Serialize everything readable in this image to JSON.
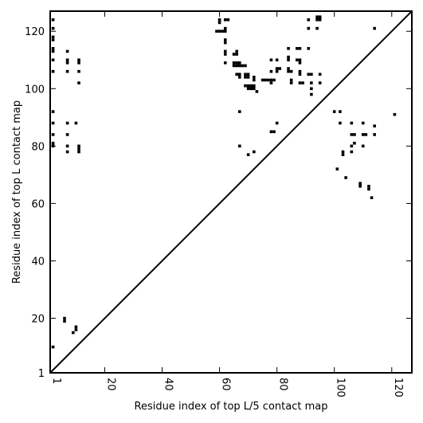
{
  "chart_data": {
    "type": "scatter",
    "xlabel": "Residue index of top L/5 contact map",
    "ylabel": "Residue index of top L contact map",
    "xlim": [
      1,
      127
    ],
    "ylim": [
      1,
      127
    ],
    "x_ticks": [
      1,
      20,
      40,
      60,
      80,
      100,
      120
    ],
    "y_ticks": [
      1,
      20,
      40,
      60,
      80,
      100,
      120
    ],
    "diagonal": true,
    "grid": false,
    "points": [
      [
        2,
        124
      ],
      [
        2,
        121
      ],
      [
        2,
        118
      ],
      [
        2,
        117
      ],
      [
        2,
        114
      ],
      [
        2,
        113
      ],
      [
        2,
        110
      ],
      [
        2,
        106
      ],
      [
        2,
        92
      ],
      [
        2,
        88
      ],
      [
        2,
        84
      ],
      [
        2,
        81
      ],
      [
        2,
        80
      ],
      [
        2,
        10
      ],
      [
        6,
        20
      ],
      [
        6,
        19
      ],
      [
        7,
        113
      ],
      [
        7,
        110
      ],
      [
        7,
        109
      ],
      [
        7,
        106
      ],
      [
        7,
        88
      ],
      [
        7,
        84
      ],
      [
        7,
        80
      ],
      [
        7,
        78
      ],
      [
        9,
        15
      ],
      [
        10,
        17
      ],
      [
        10,
        16
      ],
      [
        10,
        88
      ],
      [
        11,
        110
      ],
      [
        11,
        109
      ],
      [
        11,
        106
      ],
      [
        11,
        102
      ],
      [
        11,
        80
      ],
      [
        11,
        79
      ],
      [
        11,
        78
      ],
      [
        59,
        120
      ],
      [
        60,
        124
      ],
      [
        60,
        123
      ],
      [
        60,
        120
      ],
      [
        61,
        120
      ],
      [
        62,
        124
      ],
      [
        62,
        121
      ],
      [
        62,
        120
      ],
      [
        62,
        117
      ],
      [
        62,
        116
      ],
      [
        62,
        113
      ],
      [
        62,
        112
      ],
      [
        62,
        109
      ],
      [
        63,
        124
      ],
      [
        65,
        112
      ],
      [
        65,
        109
      ],
      [
        65,
        108
      ],
      [
        66,
        113
      ],
      [
        66,
        112
      ],
      [
        66,
        109
      ],
      [
        66,
        108
      ],
      [
        66,
        105
      ],
      [
        67,
        109
      ],
      [
        67,
        108
      ],
      [
        67,
        105
      ],
      [
        67,
        104
      ],
      [
        67,
        92
      ],
      [
        67,
        80
      ],
      [
        68,
        108
      ],
      [
        69,
        108
      ],
      [
        69,
        105
      ],
      [
        69,
        104
      ],
      [
        69,
        101
      ],
      [
        70,
        105
      ],
      [
        70,
        104
      ],
      [
        70,
        101
      ],
      [
        70,
        100
      ],
      [
        70,
        77
      ],
      [
        71,
        101
      ],
      [
        71,
        100
      ],
      [
        72,
        104
      ],
      [
        72,
        103
      ],
      [
        72,
        101
      ],
      [
        72,
        100
      ],
      [
        72,
        78
      ],
      [
        73,
        99
      ],
      [
        75,
        103
      ],
      [
        76,
        103
      ],
      [
        77,
        103
      ],
      [
        78,
        103
      ],
      [
        78,
        102
      ],
      [
        78,
        110
      ],
      [
        78,
        106
      ],
      [
        78,
        85
      ],
      [
        79,
        103
      ],
      [
        79,
        85
      ],
      [
        80,
        110
      ],
      [
        80,
        107
      ],
      [
        80,
        106
      ],
      [
        80,
        88
      ],
      [
        81,
        107
      ],
      [
        84,
        114
      ],
      [
        84,
        111
      ],
      [
        84,
        110
      ],
      [
        84,
        107
      ],
      [
        84,
        106
      ],
      [
        85,
        106
      ],
      [
        85,
        103
      ],
      [
        85,
        102
      ],
      [
        87,
        114
      ],
      [
        87,
        110
      ],
      [
        88,
        114
      ],
      [
        88,
        110
      ],
      [
        88,
        109
      ],
      [
        88,
        106
      ],
      [
        88,
        105
      ],
      [
        88,
        102
      ],
      [
        89,
        102
      ],
      [
        91,
        124
      ],
      [
        91,
        121
      ],
      [
        91,
        114
      ],
      [
        91,
        105
      ],
      [
        92,
        105
      ],
      [
        92,
        102
      ],
      [
        92,
        100
      ],
      [
        92,
        98
      ],
      [
        94,
        125
      ],
      [
        94,
        124
      ],
      [
        94,
        121
      ],
      [
        95,
        125
      ],
      [
        95,
        124
      ],
      [
        95,
        105
      ],
      [
        95,
        102
      ],
      [
        100,
        92
      ],
      [
        101,
        72
      ],
      [
        102,
        92
      ],
      [
        102,
        88
      ],
      [
        103,
        78
      ],
      [
        103,
        77
      ],
      [
        104,
        69
      ],
      [
        106,
        88
      ],
      [
        106,
        84
      ],
      [
        106,
        80
      ],
      [
        106,
        78
      ],
      [
        107,
        84
      ],
      [
        107,
        81
      ],
      [
        109,
        67
      ],
      [
        109,
        66
      ],
      [
        110,
        88
      ],
      [
        110,
        84
      ],
      [
        110,
        80
      ],
      [
        111,
        84
      ],
      [
        112,
        66
      ],
      [
        112,
        65
      ],
      [
        113,
        62
      ],
      [
        114,
        121
      ],
      [
        114,
        87
      ],
      [
        114,
        84
      ],
      [
        121,
        91
      ]
    ]
  }
}
